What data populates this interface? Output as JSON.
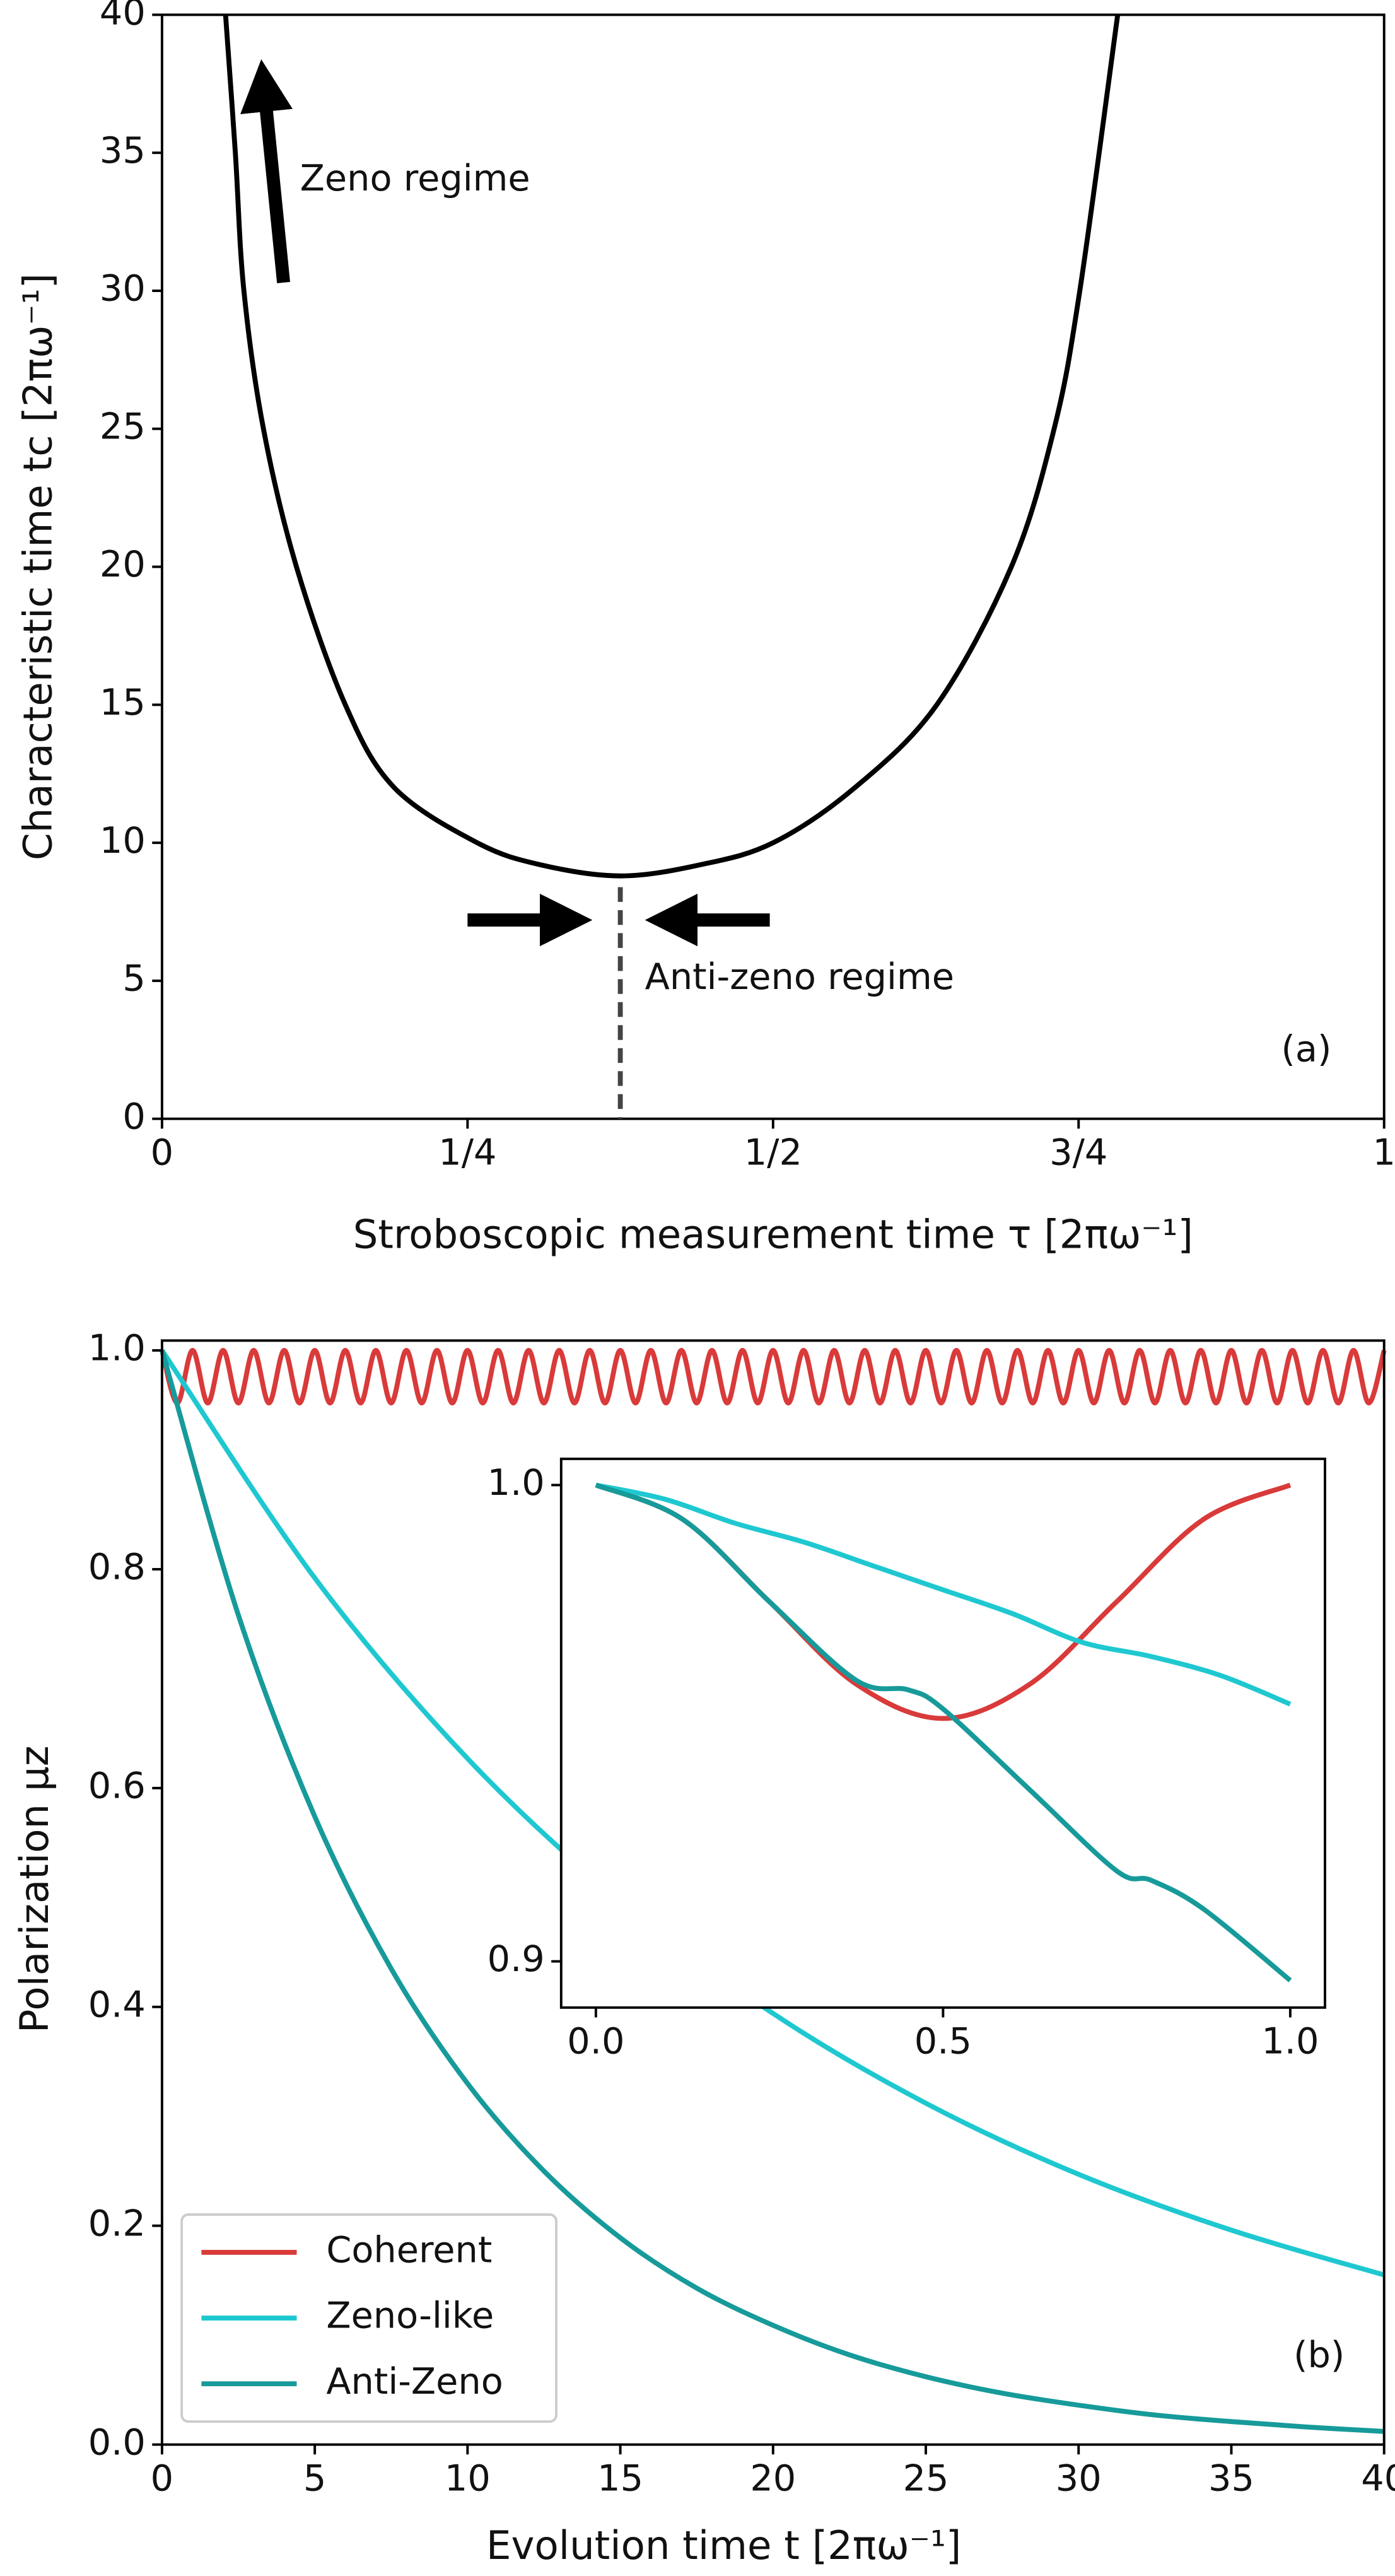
{
  "chart_data": [
    {
      "type": "line",
      "ylabel": "Characteristic time  tc [2πω⁻¹]",
      "xlabel": "Stroboscopic measurement time τ [2πω⁻¹]",
      "annotations": [
        "Zeno regime",
        "Anti-zeno regime",
        "(a)"
      ],
      "xlim": [
        0,
        1
      ],
      "ylim": [
        0,
        40
      ],
      "xticks": [
        0,
        {
          "value": 0.25,
          "label": "1/4"
        },
        {
          "value": 0.5,
          "label": "1/2"
        },
        {
          "value": 0.75,
          "label": "3/4"
        },
        1
      ],
      "yticks": [
        0,
        5,
        10,
        15,
        20,
        25,
        30,
        35,
        40
      ],
      "series": [
        {
          "color": "#000000",
          "x": [
            0.052,
            0.06,
            0.067,
            0.083,
            0.11,
            0.15,
            0.19,
            0.258,
            0.31,
            0.375,
            0.44,
            0.5,
            0.567,
            0.634,
            0.695,
            0.73,
            0.751,
            0.782
          ],
          "values": [
            40,
            35,
            30,
            25,
            20,
            15,
            12,
            10,
            9.2,
            8.8,
            9.2,
            10,
            12,
            15,
            20,
            25,
            30,
            40
          ]
        }
      ]
    },
    {
      "type": "line",
      "ylabel": "Polarization μz",
      "xlabel": "Evolution time t [2πω⁻¹]",
      "annotations": [
        "(b)"
      ],
      "legend": "lower left",
      "xlim": [
        0,
        40
      ],
      "ylim": [
        0,
        1.009
      ],
      "xticks": [
        0,
        5,
        10,
        15,
        20,
        25,
        30,
        35,
        40
      ],
      "yticks": [
        {
          "value": 0,
          "label": "0.0"
        },
        0.2,
        0.4,
        0.6,
        0.8,
        {
          "value": 1,
          "label": "1.0"
        }
      ],
      "series": [
        {
          "name": "Coherent",
          "color": "#d93a3a",
          "x": [
            0,
            0.5,
            1,
            1.5,
            2,
            2.5,
            3,
            3.5,
            4,
            4.5,
            5,
            5.5,
            6,
            6.5,
            7,
            7.5,
            8,
            8.5,
            9,
            9.5,
            10,
            10.5,
            11,
            11.5,
            12,
            12.5,
            13,
            13.5,
            14,
            14.5,
            15,
            15.5,
            16,
            16.5,
            17,
            17.5,
            18,
            18.5,
            19,
            19.5,
            20,
            20.5,
            21,
            21.5,
            22,
            22.5,
            23,
            23.5,
            24,
            24.5,
            25,
            25.5,
            26,
            26.5,
            27,
            27.5,
            28,
            28.5,
            29,
            29.5,
            30,
            30.5,
            31,
            31.5,
            32,
            32.5,
            33,
            33.5,
            34,
            34.5,
            35,
            35.5,
            36,
            36.5,
            37,
            37.5,
            38,
            38.5,
            39,
            39.5,
            40
          ],
          "values": [
            1,
            0.952,
            1,
            0.952,
            1,
            0.952,
            1,
            0.952,
            1,
            0.952,
            1,
            0.952,
            1,
            0.952,
            1,
            0.952,
            1,
            0.952,
            1,
            0.952,
            1,
            0.952,
            1,
            0.952,
            1,
            0.952,
            1,
            0.952,
            1,
            0.952,
            1,
            0.952,
            1,
            0.952,
            1,
            0.952,
            1,
            0.952,
            1,
            0.952,
            1,
            0.952,
            1,
            0.952,
            1,
            0.952,
            1,
            0.952,
            1,
            0.952,
            1,
            0.952,
            1,
            0.952,
            1,
            0.952,
            1,
            0.952,
            1,
            0.952,
            1,
            0.952,
            1,
            0.952,
            1,
            0.952,
            1,
            0.952,
            1,
            0.952,
            1,
            0.952,
            1,
            0.952,
            1,
            0.952,
            1,
            0.952,
            1,
            0.952,
            1
          ]
        },
        {
          "name": "Zeno-like",
          "color": "#1fc8d0",
          "x": [
            0,
            5,
            10,
            15,
            20,
            25,
            30,
            35,
            40
          ],
          "values": [
            1,
            0.792,
            0.627,
            0.497,
            0.394,
            0.312,
            0.247,
            0.196,
            0.155
          ]
        },
        {
          "name": "Anti-Zeno",
          "color": "#179a9a",
          "x": [
            0,
            2.5,
            5,
            7.5,
            10,
            12.5,
            15,
            17.5,
            20,
            22.5,
            25,
            27.5,
            30,
            32.5,
            35,
            37.5,
            40
          ],
          "values": [
            1,
            0.758,
            0.574,
            0.435,
            0.33,
            0.25,
            0.189,
            0.143,
            0.109,
            0.082,
            0.062,
            0.047,
            0.036,
            0.027,
            0.021,
            0.016,
            0.012
          ]
        }
      ]
    },
    {
      "type": "line",
      "xlim": [
        -0.05,
        1.05
      ],
      "ylim": [
        0.8903,
        1.0055
      ],
      "xticks": [
        {
          "value": 0,
          "label": "0.0"
        },
        0.5,
        {
          "value": 1,
          "label": "1.0"
        }
      ],
      "yticks": [
        0.9,
        {
          "value": 1,
          "label": "1.0"
        }
      ],
      "series": [
        {
          "color": "#d93a3a",
          "x": [
            0,
            0.125,
            0.25,
            0.375,
            0.5,
            0.625,
            0.75,
            0.875,
            1
          ],
          "values": [
            1,
            0.9928,
            0.9755,
            0.9582,
            0.951,
            0.9582,
            0.9755,
            0.9928,
            1
          ]
        },
        {
          "color": "#1fc8d0",
          "x": [
            0,
            0.1,
            0.2,
            0.3,
            0.4,
            0.5,
            0.6,
            0.7,
            0.8,
            0.9,
            1
          ],
          "values": [
            1,
            0.997,
            0.992,
            0.988,
            0.983,
            0.978,
            0.973,
            0.967,
            0.964,
            0.96,
            0.954
          ]
        },
        {
          "color": "#179a9a",
          "x": [
            0,
            0.125,
            0.25,
            0.375,
            0.45,
            0.5,
            0.625,
            0.75,
            0.8,
            0.875,
            1
          ],
          "values": [
            1,
            0.9928,
            0.9755,
            0.959,
            0.957,
            0.953,
            0.936,
            0.919,
            0.917,
            0.911,
            0.896
          ]
        }
      ]
    }
  ]
}
